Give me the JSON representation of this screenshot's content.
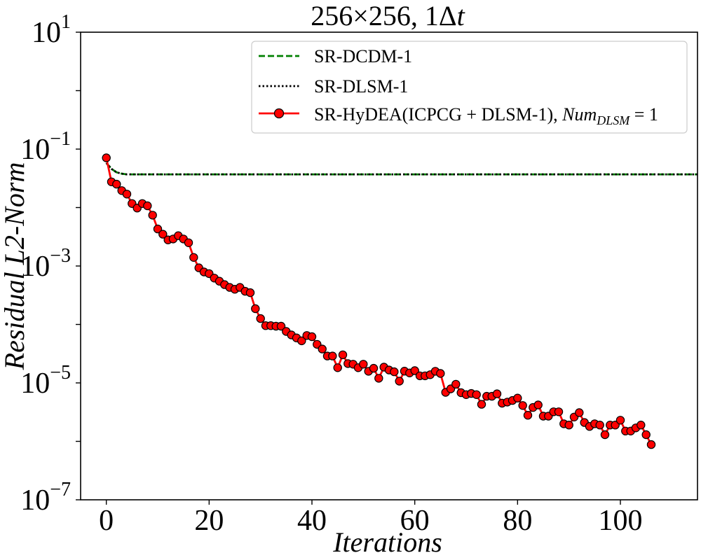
{
  "chart_data": {
    "type": "line",
    "title": "256×256, 1Δt",
    "xlabel": "Iterations",
    "ylabel": "Residual L2-Norm",
    "yscale": "log",
    "xlim": [
      -5,
      115
    ],
    "ylim_exp": [
      -7,
      1
    ],
    "x_ticks": [
      0,
      20,
      40,
      60,
      80,
      100
    ],
    "x_tick_labels": [
      "0",
      "20",
      "40",
      "60",
      "80",
      "100"
    ],
    "y_ticks_exp": [
      1,
      -1,
      -3,
      -5,
      -7
    ],
    "y_tick_labels": [
      {
        "base": "10",
        "exp": "1"
      },
      {
        "base": "10",
        "exp": "−1"
      },
      {
        "base": "10",
        "exp": "−3"
      },
      {
        "base": "10",
        "exp": "−5"
      },
      {
        "base": "10",
        "exp": "−7"
      }
    ],
    "legend_position": "top-right",
    "series": [
      {
        "name": "SR-DCDM-1",
        "color": "#008000",
        "style": "dashed",
        "x": [
          0,
          1,
          2,
          3,
          4,
          10,
          20,
          40,
          60,
          80,
          100,
          115
        ],
        "y": [
          0.058,
          0.046,
          0.04,
          0.038,
          0.037,
          0.037,
          0.037,
          0.037,
          0.037,
          0.037,
          0.037,
          0.037
        ]
      },
      {
        "name": "SR-DLSM-1",
        "color": "#000000",
        "style": "dotted",
        "x": [
          0,
          1,
          2,
          3,
          4,
          10,
          20,
          40,
          60,
          80,
          100,
          115
        ],
        "y": [
          0.058,
          0.046,
          0.04,
          0.038,
          0.037,
          0.037,
          0.037,
          0.037,
          0.037,
          0.037,
          0.037,
          0.037
        ]
      },
      {
        "name": "SR-HyDEA(ICPCG + DLSM-1), ",
        "name_math": {
          "base": "Num",
          "sub": "DLSM",
          "suffix": " = 1"
        },
        "color": "#ff0000",
        "marker_edge": "#000000",
        "style": "solid-markers",
        "x": [
          0,
          1,
          2,
          3,
          4,
          5,
          6,
          7,
          8,
          9,
          10,
          11,
          12,
          13,
          14,
          15,
          16,
          17,
          18,
          19,
          20,
          21,
          22,
          23,
          24,
          25,
          26,
          27,
          28,
          29,
          30,
          31,
          32,
          33,
          34,
          35,
          36,
          37,
          38,
          39,
          40,
          41,
          42,
          43,
          44,
          45,
          46,
          47,
          48,
          49,
          50,
          51,
          52,
          53,
          54,
          55,
          56,
          57,
          58,
          59,
          60,
          61,
          62,
          63,
          64,
          65,
          66,
          67,
          68,
          69,
          70,
          71,
          72,
          73,
          74,
          75,
          76,
          77,
          78,
          79,
          80,
          81,
          82,
          83,
          84,
          85,
          86,
          87,
          88,
          89,
          90,
          91,
          92,
          93,
          94,
          95,
          96,
          97,
          98,
          99,
          100,
          101,
          102,
          103,
          104,
          105,
          106
        ],
        "y": [
          0.0708,
          0.0275,
          0.0251,
          0.0195,
          0.017,
          0.0117,
          0.0098,
          0.0117,
          0.0107,
          0.0074,
          0.0043,
          0.0035,
          0.0028,
          0.0029,
          0.0033,
          0.0029,
          0.0025,
          0.0014,
          0.00093,
          0.00079,
          0.00074,
          0.00062,
          0.00055,
          0.00048,
          0.00043,
          0.0004,
          0.00043,
          0.00037,
          0.00035,
          0.000186,
          0.000126,
          9.55e-05,
          9.55e-05,
          9.33e-05,
          9.33e-05,
          7.58e-05,
          6.61e-05,
          5.89e-05,
          5.25e-05,
          6.46e-05,
          6.17e-05,
          4.57e-05,
          3.8e-05,
          2.88e-05,
          2.88e-05,
          1.82e-05,
          3.02e-05,
          2.14e-05,
          2.09e-05,
          1.82e-05,
          2.09e-05,
          1.58e-05,
          1.78e-05,
          1.2e-05,
          1.86e-05,
          1.66e-05,
          1.55e-05,
          1.07e-05,
          1.59e-05,
          1.48e-05,
          1.62e-05,
          1.32e-05,
          1.32e-05,
          1.38e-05,
          1.58e-05,
          1.45e-05,
          6.9e-06,
          7.9e-06,
          9.5e-06,
          6.8e-06,
          6.3e-06,
          6.6e-06,
          6.3e-06,
          4.3e-06,
          5.9e-06,
          5.9e-06,
          6.5e-06,
          4.5e-06,
          4.7e-06,
          5e-06,
          5.5e-06,
          4.1e-06,
          2.8e-06,
          3.8e-06,
          4.2e-06,
          2.7e-06,
          2.7e-06,
          3.2e-06,
          3.2e-06,
          2e-06,
          1.9e-06,
          2.6e-06,
          3.1e-06,
          2.1e-06,
          1.8e-06,
          2e-06,
          1.9e-06,
          1.3e-06,
          1.9e-06,
          1.9e-06,
          2.3e-06,
          1.5e-06,
          1.5e-06,
          1.7e-06,
          1.9e-06,
          1.3e-06,
          8.8e-07
        ]
      }
    ]
  }
}
